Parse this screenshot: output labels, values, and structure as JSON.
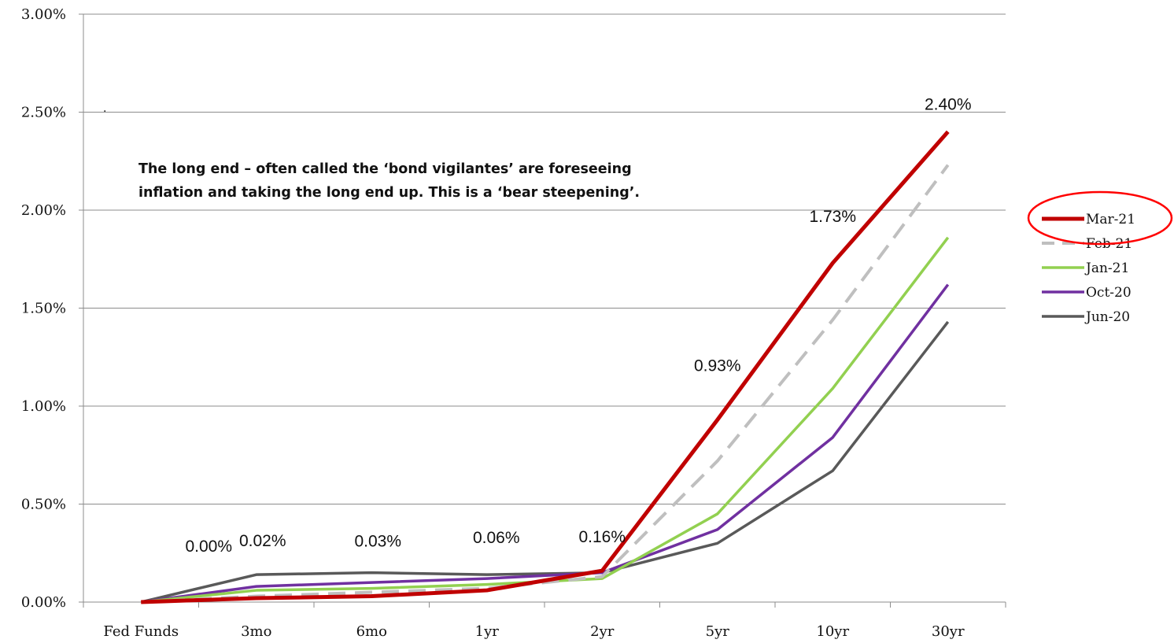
{
  "chart_data": {
    "type": "line",
    "categories": [
      "Fed Funds",
      "3mo",
      "6mo",
      "1yr",
      "2yr",
      "5yr",
      "10yr",
      "30yr"
    ],
    "ylim": [
      0,
      3.0
    ],
    "yticks": [
      "0.00%",
      "0.50%",
      "1.00%",
      "1.50%",
      "2.00%",
      "2.50%",
      "3.00%"
    ],
    "grid": true,
    "legend_position": "right",
    "series": [
      {
        "name": "Mar-21",
        "color": "#c00000",
        "dash": false,
        "values": [
          0.0,
          0.02,
          0.03,
          0.06,
          0.16,
          0.93,
          1.73,
          2.4
        ]
      },
      {
        "name": "Feb-21",
        "color": "#bfbfbf",
        "dash": true,
        "values": [
          0.0,
          0.03,
          0.05,
          0.07,
          0.13,
          0.72,
          1.44,
          2.23
        ]
      },
      {
        "name": "Jan-21",
        "color": "#92d050",
        "dash": false,
        "values": [
          0.0,
          0.06,
          0.07,
          0.09,
          0.12,
          0.45,
          1.09,
          1.86
        ]
      },
      {
        "name": "Oct-20",
        "color": "#7030a0",
        "dash": false,
        "values": [
          0.0,
          0.08,
          0.1,
          0.12,
          0.15,
          0.37,
          0.84,
          1.62
        ]
      },
      {
        "name": "Jun-20",
        "color": "#595959",
        "dash": false,
        "values": [
          0.0,
          0.14,
          0.15,
          0.14,
          0.15,
          0.3,
          0.67,
          1.43
        ]
      }
    ],
    "data_labels": [
      "0.00%",
      "0.02%",
      "0.03%",
      "0.06%",
      "0.16%",
      "0.93%",
      "1.73%",
      "2.40%"
    ],
    "annotation": "The long end – often called the ‘bond vigilantes’ are foreseeing inflation and taking the long end up.  This is a ‘bear steepening’.",
    "stray_mark": ".",
    "highlight": {
      "series": "Mar-21",
      "shape": "ellipse",
      "color": "#ff0000"
    }
  }
}
